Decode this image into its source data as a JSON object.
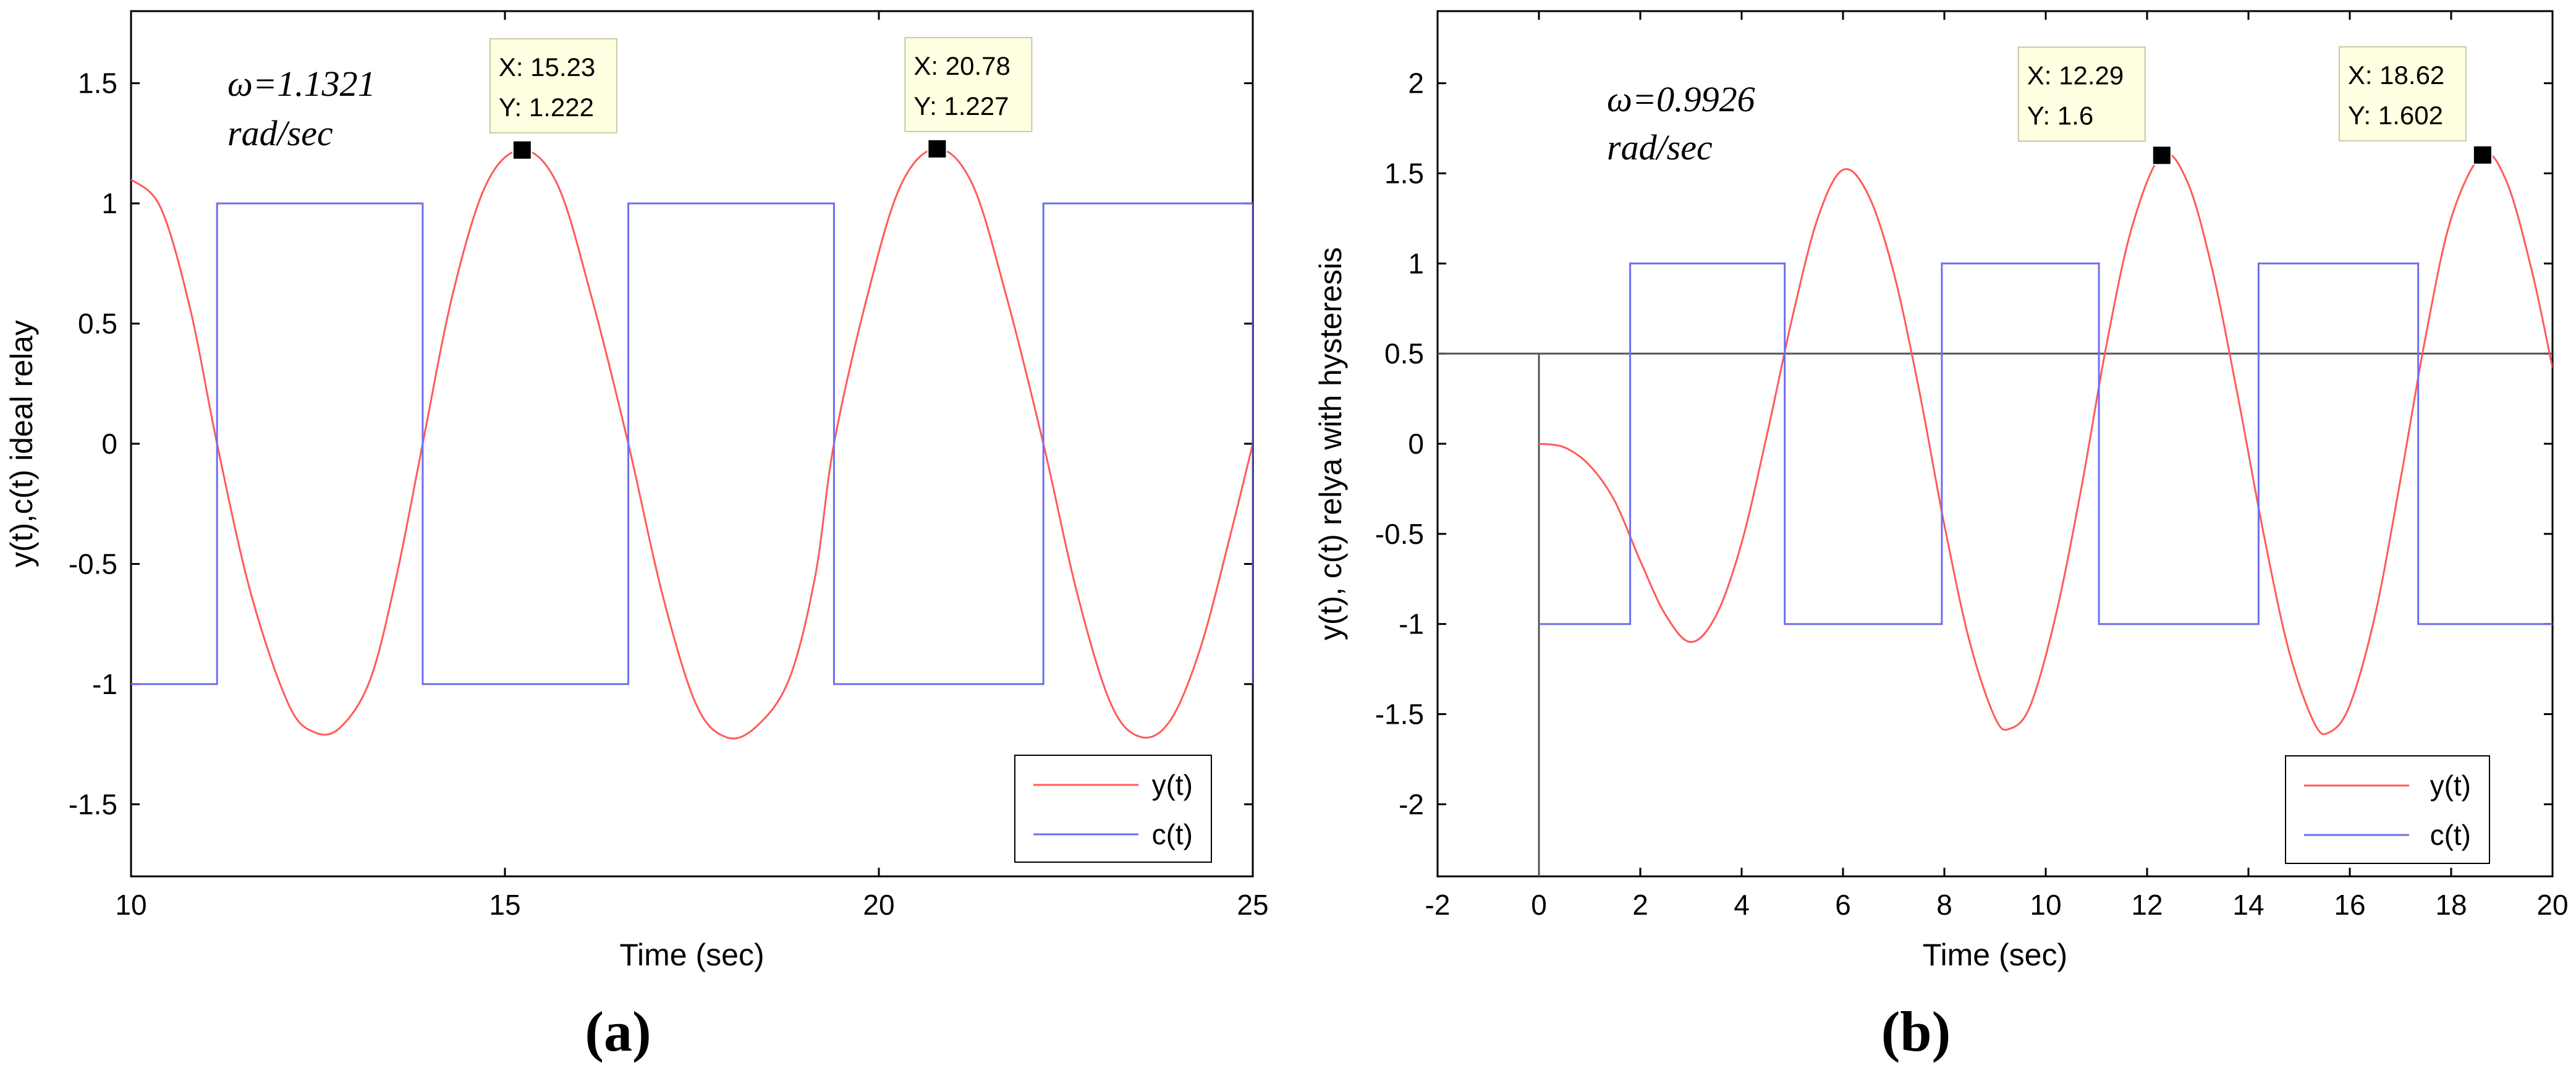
{
  "chart_data": [
    {
      "type": "line",
      "panel_label_prefix": "(",
      "panel_label_letter": "a",
      "panel_label_suffix": ")",
      "title": "",
      "xlabel": "Time (sec)",
      "ylabel": "y(t),c(t) ideal relay",
      "xlim": [
        10,
        25
      ],
      "ylim": [
        -1.8,
        1.8
      ],
      "xticks": [
        10,
        15,
        20,
        25
      ],
      "xtick_labels": [
        "10",
        "15",
        "20",
        "25"
      ],
      "yticks": [
        -1.5,
        -1,
        -0.5,
        0,
        0.5,
        1,
        1.5
      ],
      "ytick_labels": [
        "-1.5",
        "-1",
        "-0.5",
        "0",
        "0.5",
        "1",
        "1.5"
      ],
      "grid": false,
      "legend_position": "bottom-right",
      "annotation": {
        "line1": "ω=1.1321",
        "line2": "rad/sec"
      },
      "series": [
        {
          "name": "y(t)",
          "color": "#ff5a5a",
          "kind": "smooth",
          "points": [
            [
              10.0,
              1.1
            ],
            [
              10.4,
              0.98
            ],
            [
              10.8,
              0.55
            ],
            [
              11.15,
              0.0
            ],
            [
              11.6,
              -0.62
            ],
            [
              12.1,
              -1.08
            ],
            [
              12.45,
              -1.2
            ],
            [
              12.8,
              -1.18
            ],
            [
              13.2,
              -0.98
            ],
            [
              13.55,
              -0.55
            ],
            [
              13.9,
              0.0
            ],
            [
              14.3,
              0.62
            ],
            [
              14.75,
              1.08
            ],
            [
              15.23,
              1.222
            ],
            [
              15.7,
              1.08
            ],
            [
              16.15,
              0.62
            ],
            [
              16.65,
              0.0
            ],
            [
              17.1,
              -0.62
            ],
            [
              17.55,
              -1.08
            ],
            [
              17.95,
              -1.22
            ],
            [
              18.35,
              -1.18
            ],
            [
              18.8,
              -0.98
            ],
            [
              19.15,
              -0.55
            ],
            [
              19.4,
              0.0
            ],
            [
              19.85,
              0.62
            ],
            [
              20.3,
              1.08
            ],
            [
              20.78,
              1.227
            ],
            [
              21.25,
              1.08
            ],
            [
              21.7,
              0.62
            ],
            [
              22.2,
              0.0
            ],
            [
              22.65,
              -0.62
            ],
            [
              23.1,
              -1.08
            ],
            [
              23.5,
              -1.22
            ],
            [
              23.9,
              -1.15
            ],
            [
              24.3,
              -0.85
            ],
            [
              24.7,
              -0.38
            ],
            [
              25.0,
              0.0
            ]
          ]
        },
        {
          "name": "c(t)",
          "color": "#6e6ef0",
          "kind": "step",
          "points": [
            [
              10.0,
              -1
            ],
            [
              11.15,
              -1
            ],
            [
              11.15,
              1
            ],
            [
              13.9,
              1
            ],
            [
              13.9,
              -1
            ],
            [
              16.65,
              -1
            ],
            [
              16.65,
              1
            ],
            [
              19.4,
              1
            ],
            [
              19.4,
              -1
            ],
            [
              22.2,
              -1
            ],
            [
              22.2,
              1
            ],
            [
              25.0,
              1
            ],
            [
              25.0,
              -1
            ]
          ]
        }
      ],
      "datatips": [
        {
          "x": 15.23,
          "y": 1.222,
          "line1": "X: 15.23",
          "line2": "Y: 1.222"
        },
        {
          "x": 20.78,
          "y": 1.227,
          "line1": "X: 20.78",
          "line2": "Y: 1.227"
        }
      ]
    },
    {
      "type": "line",
      "panel_label_prefix": "(",
      "panel_label_letter": "b",
      "panel_label_suffix": ")",
      "title": "",
      "xlabel": "Time (sec)",
      "ylabel": "y(t), c(t) relya with hysteresis",
      "xlim": [
        -2,
        20
      ],
      "ylim": [
        -2.4,
        2.4
      ],
      "xticks": [
        -2,
        0,
        2,
        4,
        6,
        8,
        10,
        12,
        14,
        16,
        18,
        20
      ],
      "xtick_labels": [
        "-2",
        "0",
        "2",
        "4",
        "6",
        "8",
        "10",
        "12",
        "14",
        "16",
        "18",
        "20"
      ],
      "yticks": [
        -2,
        -1.5,
        -1,
        -0.5,
        0,
        0.5,
        1,
        1.5,
        2
      ],
      "ytick_labels": [
        "-2",
        "-1.5",
        "-1",
        "-0.5",
        "0",
        "0.5",
        "1",
        "1.5",
        "2"
      ],
      "grid": false,
      "legend_position": "bottom-right",
      "annotation": {
        "line1": "ω=0.9926",
        "line2": "rad/sec"
      },
      "reference_lines": [
        {
          "orientation": "horizontal",
          "value": 0.5,
          "color": "#555555"
        },
        {
          "orientation": "vertical",
          "value": 0,
          "color": "#555555"
        }
      ],
      "series": [
        {
          "name": "y(t)",
          "color": "#ff5a5a",
          "kind": "smooth",
          "points": [
            [
              0.0,
              0.0
            ],
            [
              0.5,
              -0.02
            ],
            [
              1.0,
              -0.12
            ],
            [
              1.5,
              -0.32
            ],
            [
              2.0,
              -0.65
            ],
            [
              2.5,
              -0.95
            ],
            [
              3.0,
              -1.1
            ],
            [
              3.5,
              -0.95
            ],
            [
              4.0,
              -0.55
            ],
            [
              4.5,
              0.05
            ],
            [
              5.0,
              0.7
            ],
            [
              5.5,
              1.25
            ],
            [
              6.0,
              1.52
            ],
            [
              6.5,
              1.38
            ],
            [
              7.0,
              0.95
            ],
            [
              7.5,
              0.3
            ],
            [
              8.0,
              -0.45
            ],
            [
              8.5,
              -1.1
            ],
            [
              9.0,
              -1.52
            ],
            [
              9.3,
              -1.58
            ],
            [
              9.7,
              -1.45
            ],
            [
              10.2,
              -0.95
            ],
            [
              10.7,
              -0.25
            ],
            [
              11.2,
              0.55
            ],
            [
              11.7,
              1.2
            ],
            [
              12.29,
              1.6
            ],
            [
              12.8,
              1.45
            ],
            [
              13.3,
              0.95
            ],
            [
              13.8,
              0.25
            ],
            [
              14.3,
              -0.5
            ],
            [
              14.8,
              -1.15
            ],
            [
              15.3,
              -1.55
            ],
            [
              15.6,
              -1.6
            ],
            [
              16.0,
              -1.45
            ],
            [
              16.5,
              -0.95
            ],
            [
              17.0,
              -0.2
            ],
            [
              17.5,
              0.6
            ],
            [
              18.0,
              1.25
            ],
            [
              18.62,
              1.602
            ],
            [
              19.1,
              1.45
            ],
            [
              19.6,
              0.95
            ],
            [
              20.0,
              0.42
            ]
          ]
        },
        {
          "name": "c(t)",
          "color": "#6e6ef0",
          "kind": "step",
          "points": [
            [
              0.0,
              -1
            ],
            [
              1.8,
              -1
            ],
            [
              1.8,
              1
            ],
            [
              4.85,
              1
            ],
            [
              4.85,
              -1
            ],
            [
              7.95,
              -1
            ],
            [
              7.95,
              1
            ],
            [
              11.05,
              1
            ],
            [
              11.05,
              -1
            ],
            [
              14.2,
              -1
            ],
            [
              14.2,
              1
            ],
            [
              17.35,
              1
            ],
            [
              17.35,
              -1
            ],
            [
              20.0,
              -1
            ]
          ]
        }
      ],
      "datatips": [
        {
          "x": 12.29,
          "y": 1.6,
          "line1": "X: 12.29",
          "line2": "Y: 1.6"
        },
        {
          "x": 18.62,
          "y": 1.602,
          "line1": "X: 18.62",
          "line2": "Y: 1.602"
        }
      ]
    }
  ]
}
